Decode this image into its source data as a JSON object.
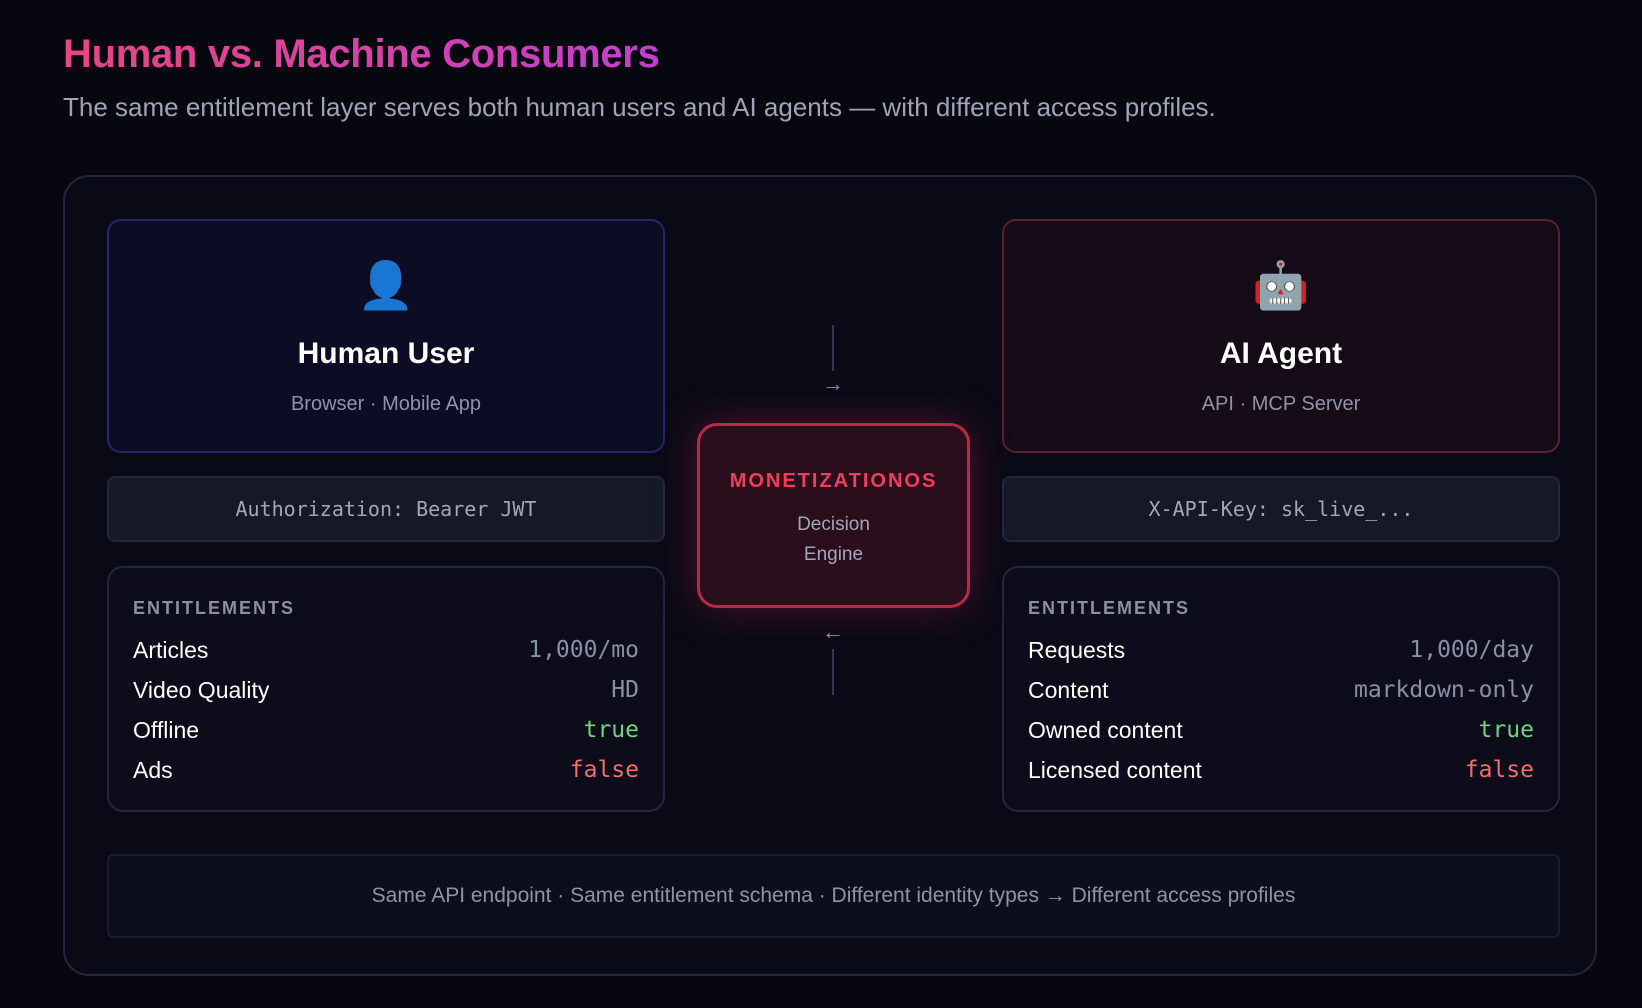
{
  "header": {
    "title": "Human vs. Machine Consumers",
    "subtitle": "The same entitlement layer serves both human users and AI agents — with different access profiles."
  },
  "human": {
    "icon": "person-icon",
    "icon_glyph": "👤",
    "name": "Human User",
    "channels": "Browser · Mobile App",
    "auth_header": "Authorization: Bearer JWT",
    "entitlements_title": "ENTITLEMENTS",
    "entitlements": [
      {
        "key": "Articles",
        "value": "1,000/mo",
        "kind": "neutral"
      },
      {
        "key": "Video Quality",
        "value": "HD",
        "kind": "neutral"
      },
      {
        "key": "Offline",
        "value": "true",
        "kind": "true"
      },
      {
        "key": "Ads",
        "value": "false",
        "kind": "false"
      }
    ]
  },
  "agent": {
    "icon": "robot-icon",
    "icon_glyph": "🤖",
    "name": "AI Agent",
    "channels": "API · MCP Server",
    "auth_header": "X-API-Key: sk_live_...",
    "entitlements_title": "ENTITLEMENTS",
    "entitlements": [
      {
        "key": "Requests",
        "value": "1,000/day",
        "kind": "neutral"
      },
      {
        "key": "Content",
        "value": "markdown-only",
        "kind": "neutral"
      },
      {
        "key": "Owned content",
        "value": "true",
        "kind": "true"
      },
      {
        "key": "Licensed content",
        "value": "false",
        "kind": "false"
      }
    ]
  },
  "engine": {
    "title": "MONETIZATIONOS",
    "subtitle_line1": "Decision",
    "subtitle_line2": "Engine",
    "arrow_in": "→",
    "arrow_out": "←"
  },
  "footer": {
    "text": "Same API endpoint · Same entitlement schema · Different identity types → Different access profiles"
  },
  "colors": {
    "background": "#07070f",
    "human_accent": "#26266a",
    "agent_accent": "#5a1f30",
    "engine_accent": "#ef3e5c",
    "true_color": "#6ed47e",
    "false_color": "#ef6f6f"
  }
}
